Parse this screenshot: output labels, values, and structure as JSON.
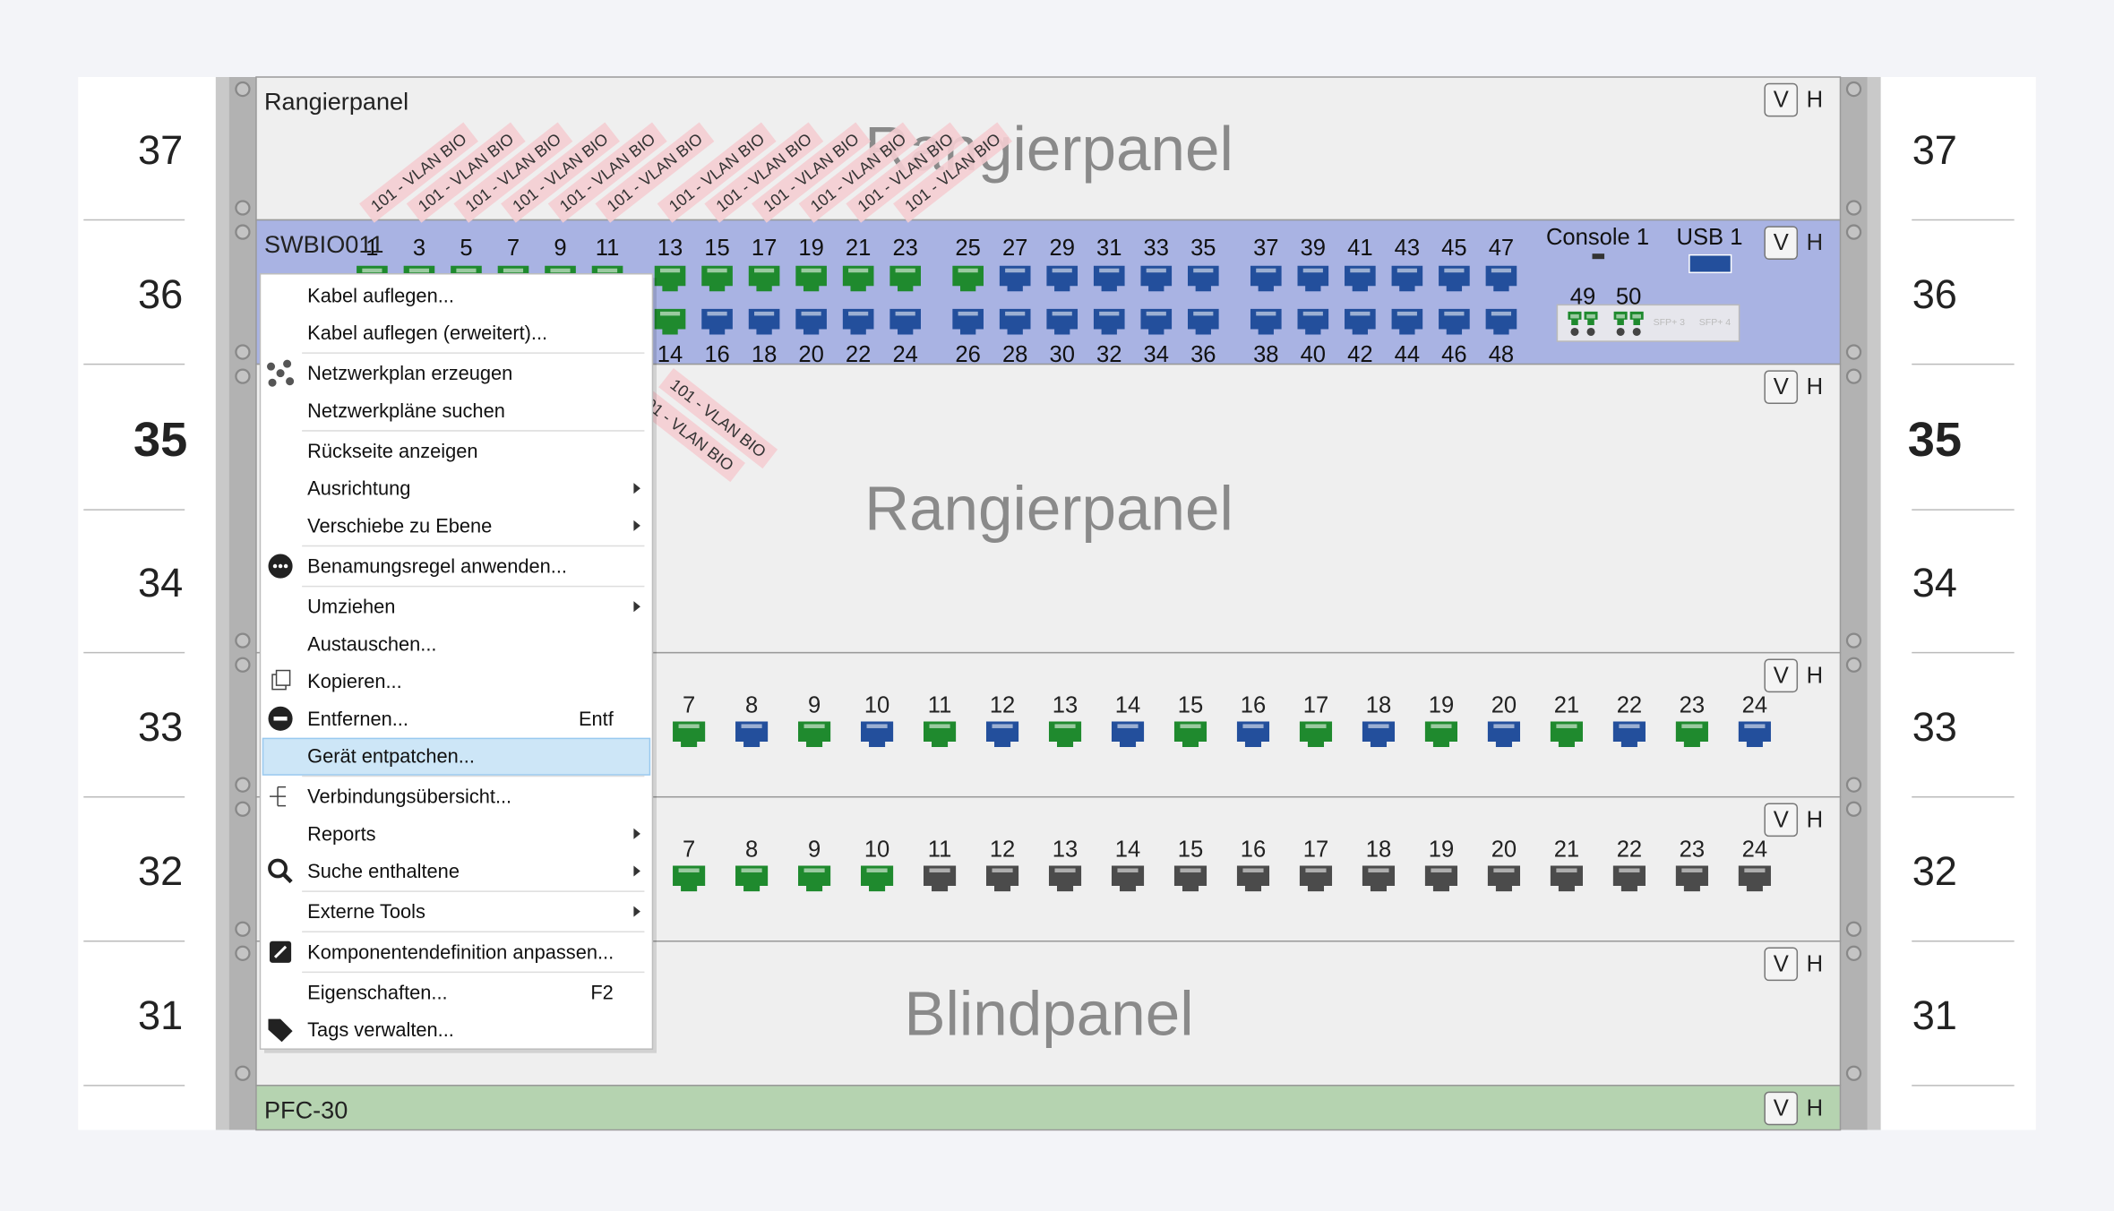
{
  "rack": {
    "units": [
      {
        "number": 37
      },
      {
        "number": 36
      },
      {
        "number": 35,
        "current": true
      },
      {
        "number": 34
      },
      {
        "number": 33
      },
      {
        "number": 32
      },
      {
        "number": 31
      }
    ],
    "view_buttons": [
      "V",
      "H"
    ],
    "cable_label": "101 - VLAN BIO",
    "devices": [
      {
        "name": "Rangierpanel",
        "watermark": "Rangierpanel",
        "fill": "#efefef"
      },
      {
        "name": "SWBIO011",
        "fill": "#a9b3e3",
        "ports_top": [
          1,
          3,
          5,
          7,
          9,
          11,
          13,
          15,
          17,
          19,
          21,
          23,
          25,
          27,
          29,
          31,
          33,
          35,
          37,
          39,
          41,
          43,
          45,
          47
        ],
        "ports_top_colors": [
          "#1f8a2e",
          "#1f8a2e",
          "#1f8a2e",
          "#1f8a2e",
          "#1f8a2e",
          "#1f8a2e",
          "#1f8a2e",
          "#1f8a2e",
          "#1f8a2e",
          "#1f8a2e",
          "#1f8a2e",
          "#1f8a2e",
          "#1f8a2e",
          "#234f9c",
          "#234f9c",
          "#234f9c",
          "#234f9c",
          "#234f9c",
          "#234f9c",
          "#234f9c",
          "#234f9c",
          "#234f9c",
          "#234f9c",
          "#234f9c"
        ],
        "ports_bottom": [
          14,
          16,
          18,
          20,
          22,
          24,
          26,
          28,
          30,
          32,
          34,
          36,
          38,
          40,
          42,
          44,
          46,
          48
        ],
        "ports_bottom_colors": [
          "#1f8a2e",
          "#234f9c",
          "#234f9c",
          "#234f9c",
          "#234f9c",
          "#234f9c",
          "#234f9c",
          "#234f9c",
          "#234f9c",
          "#234f9c",
          "#234f9c",
          "#234f9c",
          "#234f9c",
          "#234f9c",
          "#234f9c",
          "#234f9c",
          "#234f9c",
          "#234f9c"
        ],
        "console": "Console 1",
        "usb": "USB 1",
        "uplinks": [
          49,
          50
        ],
        "sfp": [
          "SFP+ 3",
          "SFP+ 4"
        ]
      },
      {
        "watermark": "Rangierpanel",
        "fill": "#efefef"
      },
      {
        "fill": "#efefef",
        "ports": [
          7,
          8,
          9,
          10,
          11,
          12,
          13,
          14,
          15,
          16,
          17,
          18,
          19,
          20,
          21,
          22,
          23,
          24
        ],
        "port_colors": [
          "#1f8a2e",
          "#234f9c",
          "#1f8a2e",
          "#234f9c",
          "#1f8a2e",
          "#234f9c",
          "#1f8a2e",
          "#234f9c",
          "#1f8a2e",
          "#234f9c",
          "#1f8a2e",
          "#234f9c",
          "#1f8a2e",
          "#234f9c",
          "#1f8a2e",
          "#234f9c",
          "#1f8a2e",
          "#234f9c"
        ]
      },
      {
        "fill": "#efefef",
        "ports": [
          7,
          8,
          9,
          10,
          11,
          12,
          13,
          14,
          15,
          16,
          17,
          18,
          19,
          20,
          21,
          22,
          23,
          24
        ],
        "port_colors": [
          "#1f8a2e",
          "#1f8a2e",
          "#1f8a2e",
          "#1f8a2e",
          "#4b4b4b",
          "#4b4b4b",
          "#4b4b4b",
          "#4b4b4b",
          "#4b4b4b",
          "#4b4b4b",
          "#4b4b4b",
          "#4b4b4b",
          "#4b4b4b",
          "#4b4b4b",
          "#4b4b4b",
          "#4b4b4b",
          "#4b4b4b",
          "#4b4b4b"
        ]
      },
      {
        "watermark": "Blindpanel",
        "fill": "#efefef"
      },
      {
        "name": "PFC-30",
        "fill": "#b5d3b0"
      }
    ]
  },
  "context_menu": {
    "items": [
      {
        "label": "Kabel auflegen..."
      },
      {
        "label": "Kabel auflegen (erweitert)...",
        "separator_after": true
      },
      {
        "label": "Netzwerkplan erzeugen"
      },
      {
        "label": "Netzwerkpläne suchen",
        "separator_after": true
      },
      {
        "label": "Rückseite anzeigen"
      },
      {
        "label": "Ausrichtung",
        "submenu": true
      },
      {
        "label": "Verschiebe zu Ebene",
        "submenu": true,
        "separator_after": true
      },
      {
        "label": "Benamungsregel anwenden...",
        "separator_after": true
      },
      {
        "label": "Umziehen",
        "submenu": true
      },
      {
        "label": "Austauschen..."
      },
      {
        "label": "Kopieren..."
      },
      {
        "label": "Entfernen...",
        "shortcut": "Entf"
      },
      {
        "label": "Gerät entpatchen...",
        "highlighted": true,
        "separator_after": true
      },
      {
        "label": "Verbindungsübersicht..."
      },
      {
        "label": "Reports",
        "submenu": true
      },
      {
        "label": "Suche enthaltene",
        "submenu": true,
        "separator_after": true
      },
      {
        "label": "Externe Tools",
        "submenu": true,
        "separator_after": true
      },
      {
        "label": "Komponentendefinition anpassen...",
        "separator_after": true
      },
      {
        "label": "Eigenschaften...",
        "shortcut": "F2"
      },
      {
        "label": "Tags verwalten..."
      }
    ]
  }
}
